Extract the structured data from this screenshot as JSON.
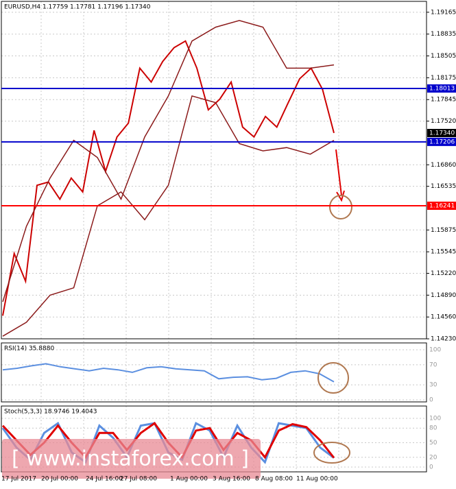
{
  "chart_data": {
    "type": "line",
    "symbol_header": "EURUSD,H4  1.17759 1.17781 1.17196 1.17340",
    "grid": true,
    "ylim": [
      1.1422,
      1.1935
    ],
    "yticks": [
      1.19165,
      1.18835,
      1.18505,
      1.18175,
      1.17845,
      {
        "value": 1.1752,
        "label": "1.17520"
      },
      {
        "value": 1.1686,
        "label": "1.16860"
      },
      1.16535,
      1.15875,
      1.15545,
      {
        "value": 1.1522,
        "label": "1.15220"
      },
      {
        "value": 1.1489,
        "label": "1.14890"
      },
      {
        "value": 1.1456,
        "label": "1.14560"
      },
      {
        "value": 1.1423,
        "label": "1.14230"
      }
    ],
    "x_labels": [
      "17 Jul 2017",
      "20 Jul 00:00",
      "24 Jul 16:00",
      "27 Jul 08:00",
      "1 Aug 00:00",
      "3 Aug 16:00",
      "8 Aug 08:00",
      "11 Aug 00:00"
    ],
    "levels": [
      {
        "value": 1.18013,
        "label": "1.18013",
        "color": "#0000cc"
      },
      {
        "value": 1.17206,
        "label": "1.17206",
        "color": "#0000cc"
      },
      {
        "value": 1.16241,
        "label": "1.16241",
        "color": "#ff0000"
      }
    ],
    "current_price": {
      "value": 1.1734,
      "label": "1.17340"
    },
    "series": [
      {
        "name": "Price",
        "color": "#cc0000",
        "values": [
          1.1458,
          1.1552,
          1.151,
          1.1655,
          1.166,
          1.1634,
          1.1666,
          1.1645,
          1.1738,
          1.1676,
          1.1728,
          1.1749,
          1.1832,
          1.1811,
          1.1842,
          1.1863,
          1.1873,
          1.1832,
          1.1769,
          1.1785,
          1.1811,
          1.1743,
          1.1728,
          1.1759,
          1.1743,
          1.178,
          1.1816,
          1.1832,
          1.18,
          1.1734
        ]
      },
      {
        "name": "Upper band",
        "color": "#8b1a1a",
        "values": [
          1.1479,
          1.1593,
          1.1666,
          1.1723,
          1.1697,
          1.1634,
          1.1728,
          1.179,
          1.1873,
          1.1894,
          1.1904,
          1.1894,
          1.1832,
          1.1832,
          1.1837
        ]
      },
      {
        "name": "Lower band",
        "color": "#8b1a1a",
        "values": [
          1.1427,
          1.1448,
          1.1489,
          1.15,
          1.1624,
          1.1645,
          1.1603,
          1.1655,
          1.179,
          1.178,
          1.1718,
          1.1707,
          1.1712,
          1.1702,
          1.1723
        ]
      }
    ],
    "rsi": {
      "title": "RSI(14) 35.8880",
      "color": "#5b8fe0",
      "ylim": [
        0,
        100
      ],
      "yticks": [
        100,
        70,
        30,
        0
      ],
      "values": [
        60,
        63,
        68,
        72,
        66,
        62,
        58,
        63,
        60,
        55,
        64,
        66,
        62,
        60,
        58,
        42,
        45,
        46,
        40,
        43,
        55,
        58,
        52,
        36
      ]
    },
    "stoch": {
      "title": "Stoch(5,3,3) 18.9746 19.4043",
      "ylim": [
        0,
        100
      ],
      "yticks": [
        100,
        80,
        50,
        20,
        0
      ],
      "series": [
        {
          "name": "Main",
          "color": "#5b8fe0",
          "values": [
            80,
            40,
            15,
            70,
            90,
            30,
            10,
            85,
            60,
            20,
            85,
            90,
            30,
            15,
            90,
            75,
            20,
            85,
            40,
            10,
            90,
            85,
            80,
            40,
            19
          ]
        },
        {
          "name": "Signal",
          "color": "#e00000",
          "values": [
            85,
            55,
            25,
            50,
            85,
            50,
            20,
            70,
            70,
            35,
            70,
            90,
            50,
            20,
            75,
            80,
            35,
            70,
            55,
            20,
            75,
            88,
            82,
            55,
            19
          ]
        }
      ]
    },
    "watermark": "[ www.instaforex.com ]"
  }
}
